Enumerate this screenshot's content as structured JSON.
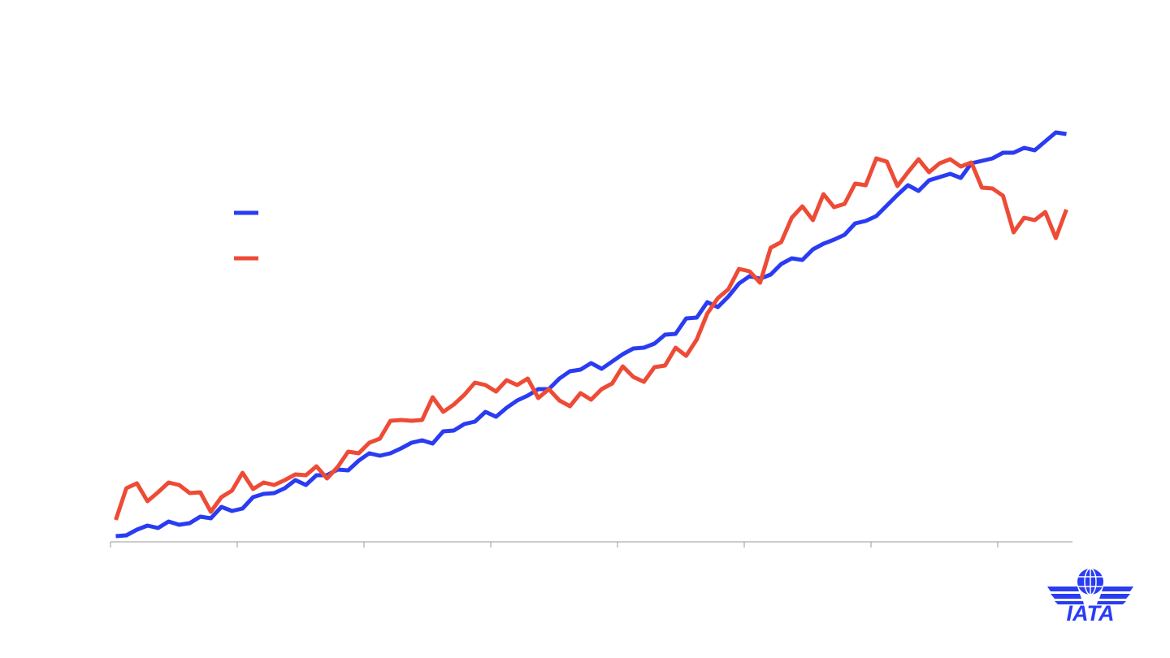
{
  "chart_data": {
    "type": "line",
    "x": [
      0.5,
      1.5,
      2.5,
      3.5,
      4.5,
      5.5,
      6.5,
      7.5,
      8.5,
      9.5,
      10.5,
      11.5,
      12.5,
      13.5,
      14.5,
      15.5,
      16.5,
      17.5,
      18.5,
      19.5,
      20.5,
      21.5,
      22.5,
      23.5,
      24.5,
      25.5,
      26.5,
      27.5,
      28.5,
      29.5,
      30.5,
      31.5,
      32.5,
      33.5,
      34.5,
      35.5,
      36.5,
      37.5,
      38.5,
      39.5,
      40.5,
      41.5,
      42.5,
      43.5,
      44.5,
      45.5,
      46.5,
      47.5,
      48.5,
      49.5,
      50.5,
      51.5,
      52.5,
      53.5,
      54.5,
      55.5,
      56.5,
      57.5,
      58.5,
      59.5,
      60.5,
      61.5,
      62.5,
      63.5,
      64.5,
      65.5,
      66.5,
      67.5,
      68.5,
      69.5,
      70.5,
      71.5,
      72.5,
      73.5,
      74.5,
      75.5,
      76.5,
      77.5,
      78.5,
      79.5,
      80.5,
      81.5,
      82.5,
      83.5,
      84.5,
      85.5,
      86.5,
      87.5,
      88.5,
      89.5,
      90.5
    ],
    "series": [
      {
        "color": "#2a3cf2",
        "values": [
          7,
          8,
          15,
          20,
          17,
          25,
          21,
          23,
          31,
          29,
          43,
          38,
          41,
          55,
          59,
          60,
          66,
          76,
          70,
          82,
          82,
          89,
          88,
          100,
          109,
          106,
          109,
          115,
          122,
          125,
          121,
          136,
          137,
          145,
          148,
          160,
          154,
          165,
          174,
          180,
          188,
          188,
          201,
          210,
          212,
          220,
          213,
          222,
          231,
          238,
          239,
          244,
          255,
          256,
          275,
          276,
          295,
          289,
          302,
          318,
          327,
          324,
          329,
          342,
          349,
          347,
          360,
          367,
          372,
          378,
          392,
          395,
          401,
          414,
          427,
          439,
          432,
          445,
          449,
          453,
          448,
          466,
          469,
          472,
          479,
          479,
          485,
          482,
          493,
          504,
          502
        ]
      },
      {
        "color": "#ee4b36",
        "values": [
          27,
          66,
          72,
          50,
          61,
          73,
          70,
          60,
          61,
          37,
          55,
          63,
          85,
          65,
          73,
          70,
          76,
          83,
          82,
          93,
          78,
          92,
          111,
          109,
          122,
          127,
          149,
          150,
          149,
          150,
          178,
          160,
          169,
          181,
          196,
          193,
          185,
          199,
          193,
          201,
          177,
          188,
          174,
          167,
          183,
          175,
          188,
          195,
          216,
          203,
          197,
          215,
          217,
          239,
          229,
          249,
          281,
          300,
          311,
          336,
          333,
          319,
          362,
          369,
          399,
          413,
          396,
          428,
          412,
          416,
          441,
          439,
          472,
          468,
          438,
          455,
          471,
          455,
          466,
          471,
          462,
          467,
          436,
          435,
          426,
          381,
          399,
          396,
          406,
          374,
          409
        ]
      }
    ],
    "xlim": [
      0,
      91
    ],
    "xticks": [
      0,
      12,
      24,
      36,
      48,
      60,
      72,
      84
    ],
    "ylim": [
      0,
      600
    ]
  },
  "logo": {
    "text": "IATA"
  }
}
